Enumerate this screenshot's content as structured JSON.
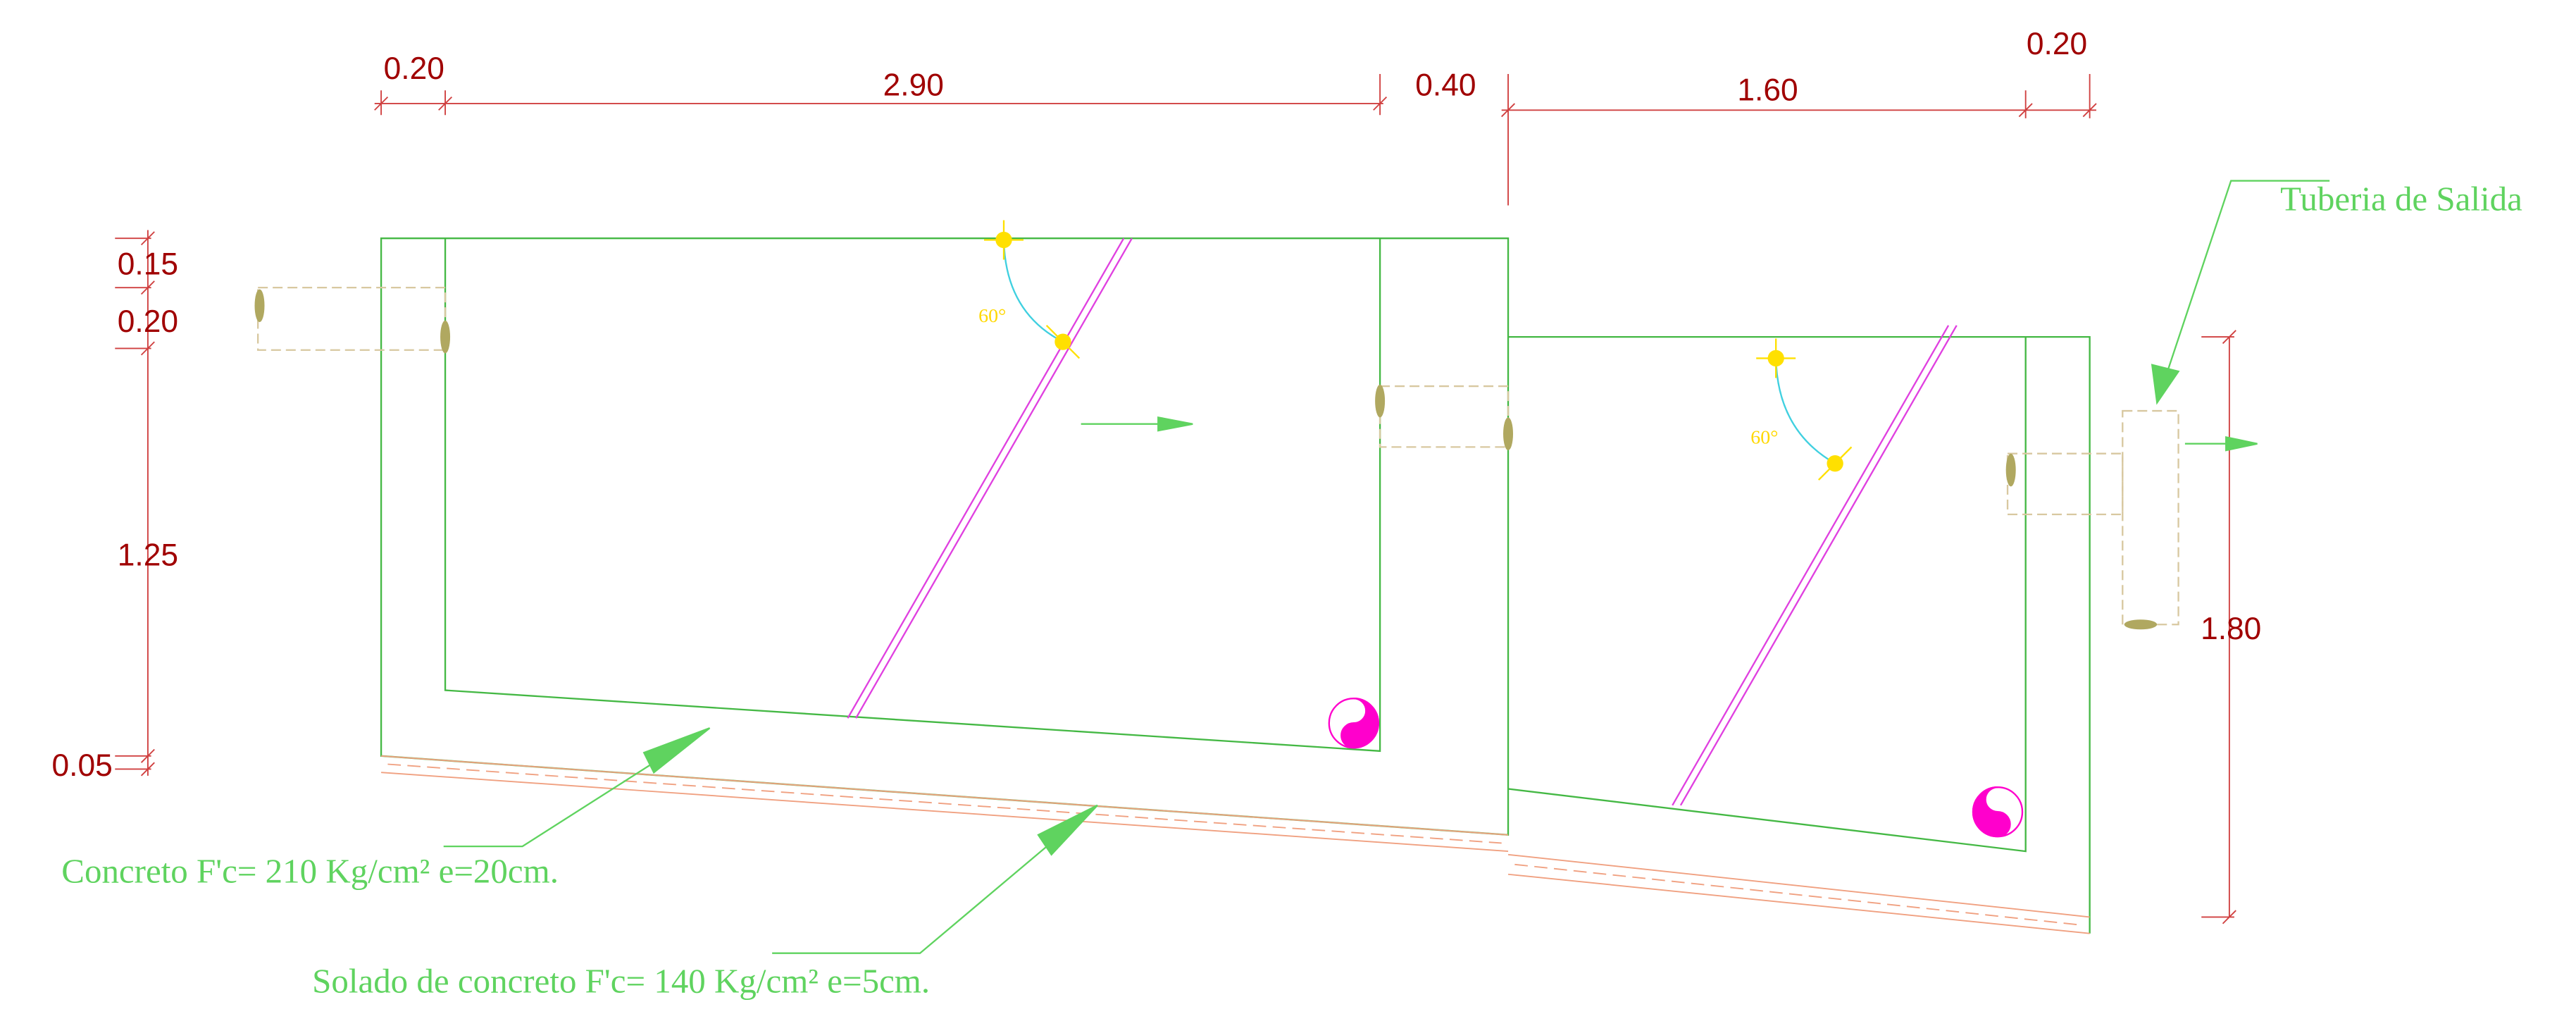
{
  "dimensions": {
    "top": [
      "0.20",
      "2.90",
      "0.40",
      "1.60",
      "0.20"
    ],
    "left": [
      "0.15",
      "0.20",
      "1.25",
      "0.05"
    ],
    "right": "1.80"
  },
  "angles": [
    "60°",
    "60°"
  ],
  "annotations": {
    "outlet_pipe": "Tuberia de Salida",
    "concrete": "Concreto F'c= 210 Kg/cm² e=20cm.",
    "blinding": "Solado de concreto F'c= 140 Kg/cm² e=5cm."
  }
}
